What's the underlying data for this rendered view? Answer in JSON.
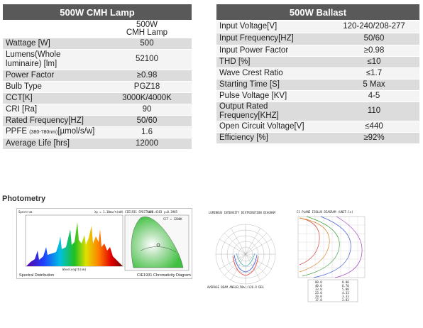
{
  "lamp": {
    "title": "500W CMH Lamp",
    "header_value": "500W\nCMH Lamp",
    "rows": [
      {
        "label": "Wattage [W]",
        "value": "500"
      },
      {
        "label": "Lumens(Whole\nluminaire) [lm]",
        "value": "52100"
      },
      {
        "label": "Power Factor",
        "value": "≥0.98"
      },
      {
        "label": "Bulb Type",
        "value": "PGZ18"
      },
      {
        "label": "CCT[K]",
        "value": "3000K/4000K"
      },
      {
        "label": "CRI [Ra]",
        "value": "90"
      },
      {
        "label": "Rated Frequency[HZ]",
        "value": "50/60"
      },
      {
        "label_main": "PPFE ",
        "label_small": "(380-780nm)",
        "label_end": "[µmol/s/w]",
        "value": "1.6"
      },
      {
        "label": "Average Life [hrs]",
        "value": "12000"
      }
    ]
  },
  "ballast": {
    "title": "500W Ballast",
    "rows": [
      {
        "label": "Input Voltage[V]",
        "value": "120-240/208-277"
      },
      {
        "label": "Input Frequency[HZ]",
        "value": "50/60"
      },
      {
        "label": "Input Power Factor",
        "value": "≥0.98"
      },
      {
        "label": "THD [%]",
        "value": "≤10"
      },
      {
        "label": "Wave Crest Ratio",
        "value": "≤1.7"
      },
      {
        "label": "Starting Time [S]",
        "value": "5 Max"
      },
      {
        "label": "Pulse Voltage [KV]",
        "value": "4-5"
      },
      {
        "label": "Output Rated Frequency[KHZ]",
        "value": "110"
      },
      {
        "label": "Open Circuit Voltage[V]",
        "value": "≤440"
      },
      {
        "label": "Efficiency [%]",
        "value": "≥92%"
      }
    ]
  },
  "photometry": {
    "title": "Photometry",
    "spectral_caption": "Spectral Distribution",
    "spectral_info": "λp = 1.10mw/%(mW)",
    "spectral_ylabel": "Spectrum",
    "spectral_xlabel": "Wavelength(nm)",
    "cie_caption": "CIE1931 Chromaticity Diagram",
    "cie_header": "CIE1931 SPECTRUM",
    "cie_coords": "x=0.4183 y=0.3985",
    "cie_cct": "CCT = 3200K",
    "intensity_title": "LUMINOUS INTENSITY DISTRIBUTION DIAGRAM",
    "intensity_footer": "AVERAGE BEAM ANGLE(50%):126.9 DEG",
    "illuminance_title": "C1 PLANE ISOLUX DIAGRAM (UNIT:lx)",
    "isolux_table": [
      [
        "80.0",
        "8.00"
      ],
      [
        "40.0",
        "6.70"
      ],
      [
        "33.0",
        "5.00"
      ],
      [
        "23.0",
        "4.33"
      ],
      [
        "20.0",
        "3.33"
      ],
      [
        "17.0",
        "2.83"
      ]
    ]
  }
}
